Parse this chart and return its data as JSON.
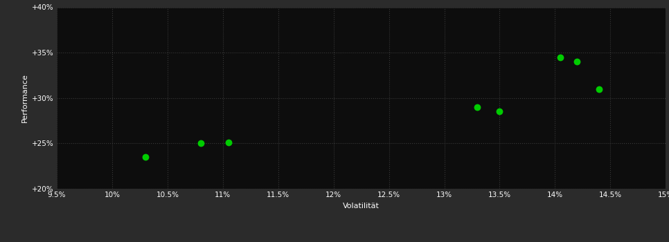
{
  "points_x": [
    10.3,
    10.8,
    11.05,
    13.3,
    13.5,
    14.05,
    14.2,
    14.4
  ],
  "points_y": [
    23.5,
    25.0,
    25.1,
    29.0,
    28.5,
    34.5,
    34.0,
    31.0
  ],
  "x_min": 9.5,
  "x_max": 15.0,
  "y_min": 20.0,
  "y_max": 40.0,
  "x_ticks": [
    9.5,
    10.0,
    10.5,
    11.0,
    11.5,
    12.0,
    12.5,
    13.0,
    13.5,
    14.0,
    14.5,
    15.0
  ],
  "y_ticks": [
    20,
    25,
    30,
    35,
    40
  ],
  "x_label": "Volatilität",
  "y_label": "Performance",
  "point_color": "#00cc00",
  "plot_bg_color": "#0d0d0d",
  "outer_bg_color": "#2b2b2b",
  "grid_color": "#3a3a3a",
  "text_color": "#ffffff",
  "marker_size": 50
}
